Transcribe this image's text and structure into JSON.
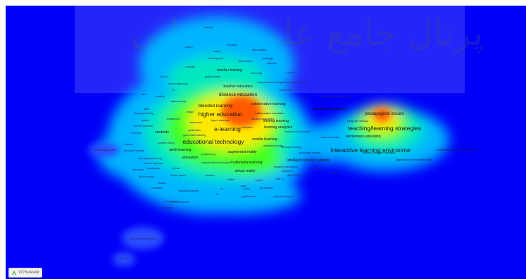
{
  "colors": {
    "background": "#0000f7",
    "low": "#00c8ff",
    "mid": "#3cff00",
    "high": "#ffe600",
    "peak": "#ff4000"
  },
  "logo": {
    "text": "VOSviewer",
    "icon": "vosviewer-logo-icon"
  },
  "watermark": {
    "text": "پرتال جامع علوم انسانی"
  },
  "terms": {
    "higher_education": "higher education",
    "e_learning": "e-learning",
    "educational_technology": "educational technology",
    "blended_learning": "blended learning",
    "distance_education": "distance education",
    "collaborative_learning": "collaborative learning",
    "mobile_learning": "mobile learning",
    "learning_analytics": "learning analytics",
    "teacher_education": "teacher education",
    "teacher_training": "teacher training",
    "students": "students",
    "simulation": "simulation",
    "augmented_reality": "augmented reality",
    "multimedia_learning": "multimedia learning",
    "virtual_reality": "virtual reality",
    "intelligent_tutoring_systems": "intelligent tutoring systems",
    "secondary_education": "secondary education",
    "elementary_education": "elementary education",
    "interactive_learning_environments": "interactive learning environme",
    "pedagogical_issues": "pedagogical issues",
    "teaching_learning_strategies": "teaching/learning strategies",
    "human_computer_interface": "human-computer interface",
    "multimedia_hypermedia_systems": "multimedia/hypermedia systems",
    "applications_in_subject_areas": "applications in subject areas",
    "adult_learning": "adult learning",
    "improving_classroom_teaching": "improving classroom teaching",
    "evaluation_of_cai_systems": "evaluation of cai systems",
    "lifelong_learning": "lifelong learning",
    "mathematics_education": "mathematics education",
    "motivation": "motivation",
    "assessment": "assessment",
    "computer_literacy": "computer literacy",
    "gamification": "gamification",
    "architectures": "architectures",
    "engagement": "engagement",
    "media_in_education": "media in education",
    "cooperative_learning": "cooperative learning",
    "design": "design",
    "flipped_classroom": "flipped classroom",
    "game_based_learning": "game-based learning",
    "online_learning": "online learning",
    "problem_solving": "problem solving",
    "self_regulated_learning": "self-regulated learning",
    "science_education": "science education",
    "programming": "programming",
    "computer_science_education": "computer science education",
    "cultural_differences": "cultural differences",
    "gender_studies": "gender studies",
    "authoring_tools": "authoring tools",
    "data_science": "data science",
    "distributed_learning": "distributed learning",
    "learning_communities": "learning communities",
    "pedagogy": "pedagogy",
    "robotics": "robotics",
    "technology": "technology",
    "computational_thinking": "computational thinking",
    "professional_development": "professional development",
    "social_media": "social media",
    "mooc": "mooc",
    "deep_learning": "deep learning",
    "learning": "learning",
    "reading": "reading",
    "writing": "writing",
    "feedback": "feedback",
    "attitudes": "attitudes",
    "creativity": "creativity",
    "covid_19": "covid-19",
    "ict": "ict",
    "video": "video",
    "usability": "usability",
    "tablet": "tablet",
    "quality": "quality",
    "primary_education": "primary education",
    "chemistry": "chemistry",
    "physics": "physics",
    "interactive_learning": "interactive learning",
    "visualization": "visualization",
    "virtual_learning": "virtual learning",
    "serious_games": "serious games",
    "emotion": "emotion",
    "teachers": "teachers",
    "twitter": "twitter",
    "english": "english",
    "tpack": "tpack",
    "ar": "ar",
    "vr": "vr",
    "e_book": "e-book",
    "eye_tracking": "eye tracking",
    "web_2_0": "web 2.0",
    "cognitive_load": "cognitive load",
    "instructional_design": "instructional design",
    "learning_environments": "learning environments",
    "educational_games": "educational games",
    "peer_assessment": "peer assessment",
    "knowledge": "knowledge",
    "student_engagement": "student engagement",
    "language_learning": "language learning",
    "discussion": "discussion",
    "internet": "internet",
    "evaluation": "evaluation",
    "online": "online",
    "instruction": "instruction",
    "digital_literacy": "digital literacy",
    "co_design": "co-design",
    "post_secondary_education": "post-secondary education",
    "ubiquitous_learning": "ubiquitous learning",
    "virtual_worlds": "virtual worlds"
  }
}
